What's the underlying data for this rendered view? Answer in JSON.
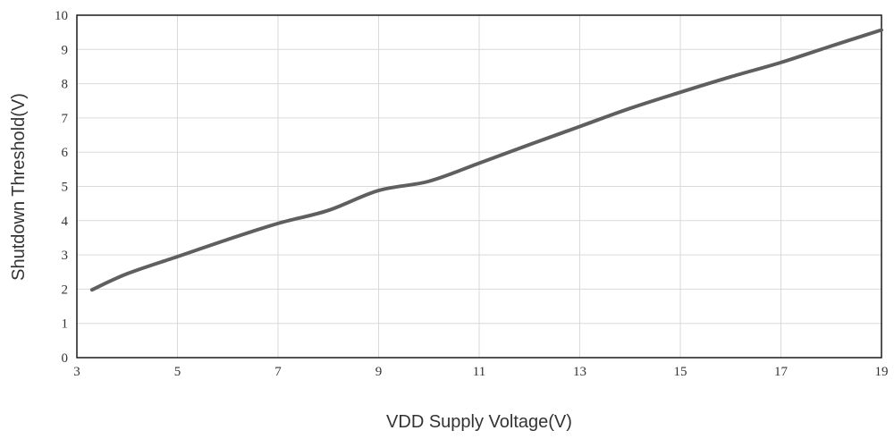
{
  "chart_data": {
    "type": "line",
    "title": "",
    "xlabel": "VDD Supply Voltage(V)",
    "ylabel": "Shutdown Threshold(V)",
    "xlim": [
      3,
      19
    ],
    "ylim": [
      0,
      10
    ],
    "x_ticks": [
      "3",
      "5",
      "7",
      "9",
      "11",
      "13",
      "15",
      "17",
      "19"
    ],
    "y_ticks": [
      "0",
      "1",
      "2",
      "3",
      "4",
      "5",
      "6",
      "7",
      "8",
      "9",
      "10"
    ],
    "grid": true,
    "legend": "none",
    "series": [
      {
        "color": "#5f5f5f",
        "x": [
          3.3,
          4,
          5,
          6,
          7,
          8,
          9,
          10,
          11,
          12,
          13,
          14,
          15,
          16,
          17,
          18,
          19
        ],
        "y": [
          1.98,
          2.45,
          2.95,
          3.45,
          3.92,
          4.3,
          4.88,
          5.15,
          5.68,
          6.22,
          6.75,
          7.28,
          7.75,
          8.2,
          8.62,
          9.1,
          9.57
        ]
      }
    ]
  }
}
